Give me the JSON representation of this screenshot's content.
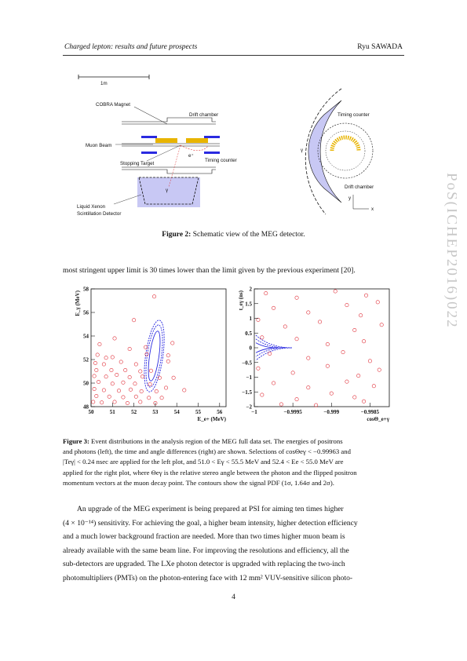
{
  "header": {
    "left": "Charged lepton: results and future prospects",
    "right": "Ryu SAWADA"
  },
  "side_stamp": "PoS(ICHEP2016)022",
  "figure2": {
    "labels": {
      "scale": "1m",
      "cobra": "COBRA Magnet",
      "drift": "Drift chamber",
      "muon": "Muon Beam",
      "target": "Stopping Target",
      "timing": "Timing counter",
      "lxe1": "Liquid Xenon",
      "lxe2": "Scintillation Detector",
      "timing_r": "Timing counter",
      "drift_r": "Drift chamber",
      "e_plus": "e⁺",
      "gamma": "γ",
      "y": "y",
      "x": "x"
    },
    "caption_label": "Figure 2:",
    "caption_text": " Schematic view of the MEG detector."
  },
  "para1": "most stringent upper limit is 30 times lower than the limit given by the previous experiment [20].",
  "chart_data": [
    {
      "type": "scatter",
      "ylabel": "E_γ (MeV)",
      "xlabel": "E_e+ (MeV)",
      "xlim": [
        50,
        56.3
      ],
      "ylim": [
        48,
        58
      ],
      "xticks": [
        "50",
        "51",
        "52",
        "53",
        "54",
        "55",
        "56"
      ],
      "yticks": [
        "48",
        "50",
        "52",
        "54",
        "56",
        "58"
      ],
      "points": [
        [
          52.95,
          57.35
        ],
        [
          52.0,
          55.35
        ],
        [
          51.1,
          53.8
        ],
        [
          50.4,
          53.3
        ],
        [
          51.8,
          52.9
        ],
        [
          52.55,
          53.05
        ],
        [
          50.3,
          52.4
        ],
        [
          50.7,
          52.15
        ],
        [
          51.0,
          52.2
        ],
        [
          52.6,
          52.45
        ],
        [
          53.6,
          52.35
        ],
        [
          53.8,
          53.4
        ],
        [
          50.2,
          51.7
        ],
        [
          50.6,
          51.6
        ],
        [
          51.4,
          51.8
        ],
        [
          52.1,
          51.6
        ],
        [
          53.6,
          51.85
        ],
        [
          50.25,
          51.1
        ],
        [
          50.95,
          51.1
        ],
        [
          51.6,
          51.1
        ],
        [
          52.3,
          51.0
        ],
        [
          52.8,
          51.05
        ],
        [
          50.15,
          50.6
        ],
        [
          50.7,
          50.55
        ],
        [
          51.2,
          50.7
        ],
        [
          51.8,
          50.5
        ],
        [
          52.4,
          50.55
        ],
        [
          53.2,
          50.45
        ],
        [
          53.85,
          50.45
        ],
        [
          50.35,
          50.1
        ],
        [
          51.0,
          49.95
        ],
        [
          51.5,
          50.05
        ],
        [
          52.05,
          49.95
        ],
        [
          52.75,
          49.9
        ],
        [
          53.5,
          49.6
        ],
        [
          54.35,
          49.4
        ],
        [
          50.15,
          49.5
        ],
        [
          50.6,
          49.4
        ],
        [
          51.3,
          49.35
        ],
        [
          51.85,
          49.45
        ],
        [
          52.35,
          49.3
        ],
        [
          53.05,
          49.3
        ],
        [
          50.25,
          48.9
        ],
        [
          50.85,
          48.85
        ],
        [
          51.5,
          48.8
        ],
        [
          52.1,
          48.85
        ],
        [
          52.7,
          48.75
        ],
        [
          53.3,
          48.75
        ],
        [
          50.1,
          48.4
        ],
        [
          50.5,
          48.35
        ],
        [
          51.1,
          48.4
        ],
        [
          51.7,
          48.3
        ],
        [
          52.3,
          48.4
        ],
        [
          53.0,
          48.3
        ]
      ],
      "contours": "signal PDF 1σ, 1.64σ, 2σ"
    },
    {
      "type": "scatter",
      "ylabel": "t_eγ (ns)",
      "xlabel": "cosΘ_e+γ",
      "xlim": [
        -1.0,
        -0.99825
      ],
      "ylim": [
        -2,
        2
      ],
      "xticks": [
        "−1",
        "−0.9995",
        "−0.999",
        "−0.9985"
      ],
      "yticks": [
        "−2",
        "−1.5",
        "−1",
        "−0.5",
        "0",
        "0.5",
        "1",
        "1.5",
        "2"
      ],
      "points": [
        [
          -0.99985,
          1.85
        ],
        [
          -0.99945,
          1.7
        ],
        [
          -0.99895,
          1.92
        ],
        [
          -0.99855,
          1.78
        ],
        [
          -0.9984,
          1.55
        ],
        [
          -0.99975,
          1.35
        ],
        [
          -0.9993,
          1.2
        ],
        [
          -0.9988,
          1.45
        ],
        [
          -0.99862,
          1.1
        ],
        [
          -0.99995,
          0.95
        ],
        [
          -0.9996,
          0.72
        ],
        [
          -0.99915,
          0.88
        ],
        [
          -0.9987,
          0.6
        ],
        [
          -0.99835,
          0.78
        ],
        [
          -0.9999,
          0.35
        ],
        [
          -0.99945,
          0.3
        ],
        [
          -0.99905,
          0.12
        ],
        [
          -0.99858,
          0.22
        ],
        [
          -0.9998,
          -0.2
        ],
        [
          -0.9993,
          -0.35
        ],
        [
          -0.99885,
          -0.15
        ],
        [
          -0.9985,
          -0.45
        ],
        [
          -0.99995,
          -0.7
        ],
        [
          -0.9995,
          -0.85
        ],
        [
          -0.99905,
          -0.62
        ],
        [
          -0.99865,
          -0.95
        ],
        [
          -0.99838,
          -0.75
        ],
        [
          -0.99975,
          -1.2
        ],
        [
          -0.9993,
          -1.35
        ],
        [
          -0.9988,
          -1.15
        ],
        [
          -0.99845,
          -1.3
        ],
        [
          -0.9999,
          -1.6
        ],
        [
          -0.99945,
          -1.75
        ],
        [
          -0.999,
          -1.55
        ],
        [
          -0.99858,
          -1.82
        ],
        [
          -0.99965,
          -1.92
        ],
        [
          -0.9992,
          -1.95
        ],
        [
          -0.9987,
          -1.68
        ]
      ],
      "contours": "signal PDF 1σ, 1.64σ, 2σ"
    }
  ],
  "figure3": {
    "caption_label": "Figure 3:",
    "caption_lines": [
      " Event distributions in the analysis region of the MEG full data set.  The energies of positrons",
      "and photons (left), the time and angle differences (right) are shown. Selections of cosΘeγ < −0.99963 and",
      "|Teγ| < 0.24 nsec are applied for the left plot, and 51.0 < Eγ < 55.5 MeV and 52.4 < Ee < 55.0 MeV are",
      "applied for the right plot, where Θeγ is the relative stereo angle between the photon and the flipped positron",
      "momentum vectors at the muon decay point. The contours show the signal PDF (1σ, 1.64σ and 2σ)."
    ]
  },
  "body_lines": [
    "An upgrade of the MEG experiment is being prepared at PSI for aiming ten times higher",
    "(4 × 10⁻¹⁴) sensitivity. For achieving the goal, a higher beam intensity, higher detection efficiency",
    "and a much lower background fraction are needed.  More than two times higher muon beam is",
    "already available with the same beam line.  For improving the resolutions and efficiency, all the",
    "sub-detectors are upgraded.  The LXe photon detector is upgraded with replacing the two-inch",
    "photomultipliers (PMTs) on the photon-entering face with 12 mm² VUV-sensitive silicon photo-"
  ],
  "page_number": "4",
  "colors": {
    "marker": "#e0303a",
    "contour": "#2a2ae0",
    "fill_blue": "#c8c8f4",
    "target": "#e8b400"
  }
}
